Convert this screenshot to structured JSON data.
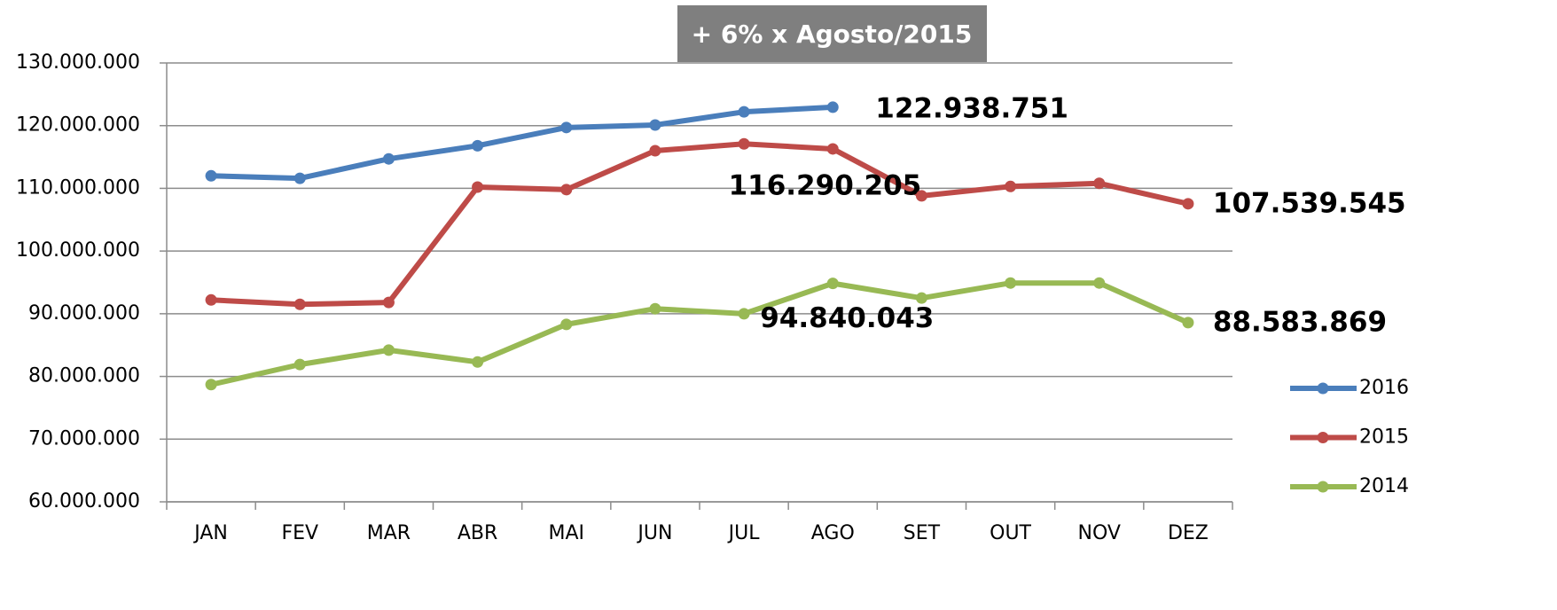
{
  "chart_data": {
    "type": "line",
    "annotation": "+ 6% x Agosto/2015",
    "categories": [
      "JAN",
      "FEV",
      "MAR",
      "ABR",
      "MAI",
      "JUN",
      "JUL",
      "AGO",
      "SET",
      "OUT",
      "NOV",
      "DEZ"
    ],
    "series": [
      {
        "name": "2016",
        "color": "#4a7ebb",
        "values": [
          112000000,
          111600000,
          114700000,
          116800000,
          119700000,
          120100000,
          122200000,
          122938751,
          null,
          null,
          null,
          null
        ],
        "value_labels": [
          null,
          null,
          null,
          null,
          null,
          null,
          null,
          "122.938.751",
          null,
          null,
          null,
          null
        ]
      },
      {
        "name": "2015",
        "color": "#be4b48",
        "values": [
          92200000,
          91500000,
          91800000,
          110200000,
          109800000,
          116000000,
          117100000,
          116290205,
          108800000,
          110300000,
          110800000,
          107539545
        ],
        "value_labels": [
          null,
          null,
          null,
          null,
          null,
          null,
          null,
          "116.290.205",
          null,
          null,
          null,
          "107.539.545"
        ]
      },
      {
        "name": "2014",
        "color": "#98b954",
        "values": [
          78700000,
          81900000,
          84200000,
          82300000,
          88300000,
          90800000,
          90000000,
          94840043,
          92500000,
          94900000,
          94900000,
          88583869
        ],
        "value_labels": [
          null,
          null,
          null,
          null,
          null,
          null,
          null,
          "94.840.043",
          null,
          null,
          null,
          "88.583.869"
        ]
      }
    ],
    "ylim": [
      60000000,
      130000000
    ],
    "yticks": [
      {
        "value": 60000000,
        "label": "60.000.000"
      },
      {
        "value": 70000000,
        "label": "70.000.000"
      },
      {
        "value": 80000000,
        "label": "80.000.000"
      },
      {
        "value": 90000000,
        "label": "90.000.000"
      },
      {
        "value": 100000000,
        "label": "100.000.000"
      },
      {
        "value": 110000000,
        "label": "110.000.000"
      },
      {
        "value": 120000000,
        "label": "120.000.000"
      },
      {
        "value": 130000000,
        "label": "130.000.000"
      }
    ],
    "grid": true,
    "legend": "right"
  }
}
